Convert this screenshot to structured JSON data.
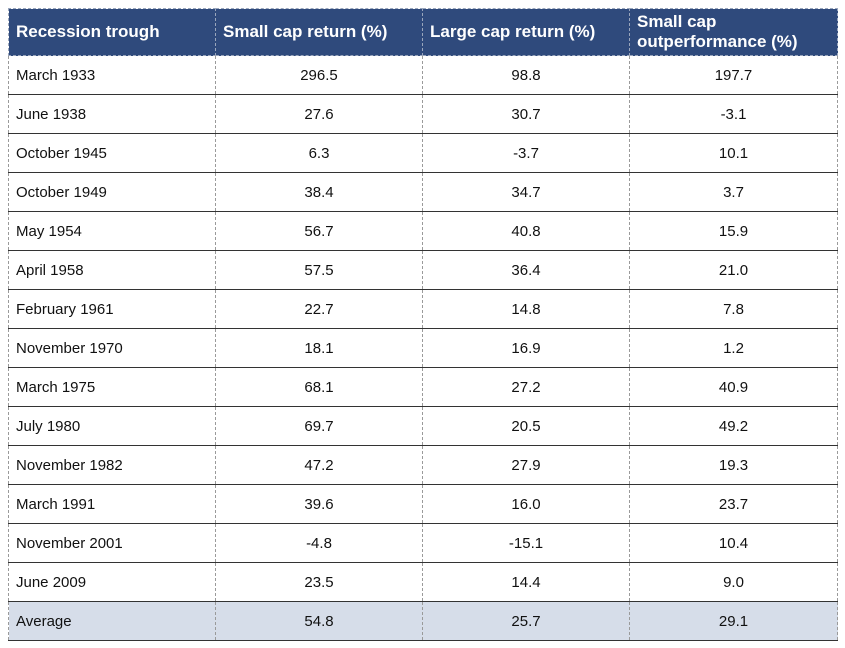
{
  "table": {
    "headers": [
      "Recession trough",
      "Small cap return (%)",
      "Large cap return (%)",
      "Small cap outperformance (%)"
    ],
    "rows": [
      [
        "March 1933",
        "296.5",
        "98.8",
        "197.7"
      ],
      [
        "June 1938",
        "27.6",
        "30.7",
        "-3.1"
      ],
      [
        "October 1945",
        "6.3",
        "-3.7",
        "10.1"
      ],
      [
        "October 1949",
        "38.4",
        "34.7",
        "3.7"
      ],
      [
        "May 1954",
        "56.7",
        "40.8",
        "15.9"
      ],
      [
        "April 1958",
        "57.5",
        "36.4",
        "21.0"
      ],
      [
        "February 1961",
        "22.7",
        "14.8",
        "7.8"
      ],
      [
        "November 1970",
        "18.1",
        "16.9",
        "1.2"
      ],
      [
        "March 1975",
        "68.1",
        "27.2",
        "40.9"
      ],
      [
        "July 1980",
        "69.7",
        "20.5",
        "49.2"
      ],
      [
        "November 1982",
        "47.2",
        "27.9",
        "19.3"
      ],
      [
        "March 1991",
        "39.6",
        "16.0",
        "23.7"
      ],
      [
        "November 2001",
        "-4.8",
        "-15.1",
        "10.4"
      ],
      [
        "June 2009",
        "23.5",
        "14.4",
        "9.0"
      ]
    ],
    "average": [
      "Average",
      "54.8",
      "25.7",
      "29.1"
    ]
  },
  "colors": {
    "header_bg": "#2f4a7c",
    "header_text": "#ffffff",
    "average_bg": "#d6dde9"
  }
}
